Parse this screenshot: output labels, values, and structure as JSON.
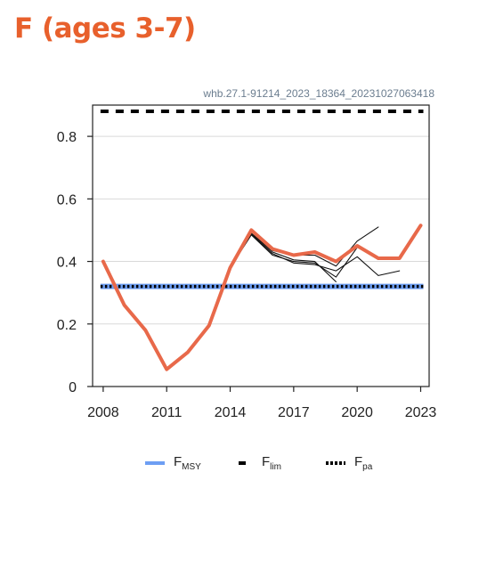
{
  "header": {
    "title": "F (ages 3-7)"
  },
  "chart_data": {
    "type": "line",
    "title": "F (ages 3-7)",
    "subtitle": "whb.27.1-91214_2023_18364_20231027063418",
    "xlabel": "",
    "ylabel": "",
    "xlim": [
      2007.5,
      2023.4
    ],
    "ylim": [
      0,
      0.9
    ],
    "x_ticks": [
      2008,
      2011,
      2014,
      2017,
      2020,
      2023
    ],
    "y_ticks": [
      0,
      0.2,
      0.4,
      0.6,
      0.8
    ],
    "y_tick_labels": [
      "0",
      "0.2",
      "0.4",
      "0.6",
      "0.8"
    ],
    "grid": "horizontal",
    "legend_position": "bottom",
    "series": [
      {
        "name": "",
        "style": "thick-line",
        "color": "#e8694a",
        "x": [
          2008,
          2009,
          2010,
          2011,
          2012,
          2013,
          2014,
          2015,
          2016,
          2017,
          2018,
          2019,
          2020,
          2021,
          2022,
          2023
        ],
        "y": [
          0.4,
          0.26,
          0.18,
          0.055,
          0.11,
          0.195,
          0.38,
          0.5,
          0.44,
          0.42,
          0.43,
          0.4,
          0.45,
          0.41,
          0.41,
          0.515
        ]
      },
      {
        "name": "",
        "style": "retrospective",
        "color": "#111111",
        "x": [
          2014,
          2015,
          2016,
          2017,
          2018,
          2019,
          2020,
          2021
        ],
        "y": [
          0.38,
          0.49,
          0.435,
          0.42,
          0.42,
          0.385,
          0.465,
          0.51
        ]
      },
      {
        "name": "",
        "style": "retrospective",
        "color": "#111111",
        "x": [
          2014,
          2015,
          2016,
          2017,
          2018,
          2019,
          2020
        ],
        "y": [
          0.38,
          0.485,
          0.42,
          0.4,
          0.395,
          0.35,
          0.445
        ]
      },
      {
        "name": "",
        "style": "retrospective",
        "color": "#111111",
        "x": [
          2014,
          2015,
          2016,
          2017,
          2018,
          2019,
          2020,
          2021,
          2022
        ],
        "y": [
          0.38,
          0.487,
          0.425,
          0.395,
          0.39,
          0.37,
          0.415,
          0.355,
          0.37
        ]
      },
      {
        "name": "",
        "style": "retrospective",
        "color": "#111111",
        "x": [
          2014,
          2015,
          2016,
          2017,
          2018,
          2019
        ],
        "y": [
          0.38,
          0.49,
          0.43,
          0.405,
          0.4,
          0.335
        ]
      }
    ],
    "reference_lines": [
      {
        "name": "FMSY",
        "label_main": "F",
        "label_sub": "MSY",
        "value": 0.32,
        "style": "solid",
        "color": "#6d9ef3"
      },
      {
        "name": "Flim",
        "label_main": "F",
        "label_sub": "lim",
        "value": 0.88,
        "style": "dashed",
        "color": "#000000"
      },
      {
        "name": "Fpa",
        "label_main": "F",
        "label_sub": "pa",
        "value": 0.32,
        "style": "dotted",
        "color": "#000000"
      }
    ]
  }
}
